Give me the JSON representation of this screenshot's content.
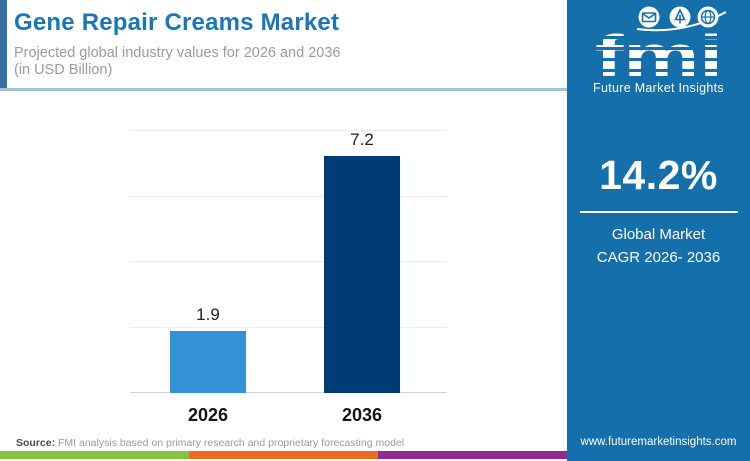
{
  "header": {
    "title": "Gene Repair Creams Market",
    "subtitle_line1": "Projected global industry values for 2026 and 2036",
    "subtitle_line2": "(in USD Billion)"
  },
  "chart_data": {
    "type": "bar",
    "title": "Gene Repair Creams Market",
    "subtitle": "Projected global industry values for 2026 and 2036 (in USD Billion)",
    "categories": [
      "2026",
      "2036"
    ],
    "values": [
      1.9,
      7.2
    ],
    "xlabel": "",
    "ylabel": "USD Billion",
    "ylim": [
      0,
      8
    ],
    "gridline_step": 2,
    "grid": true,
    "legend": false,
    "bar_colors": [
      "#3493d6",
      "#003a77"
    ]
  },
  "sidebar": {
    "background": "#156fab",
    "logo": {
      "brand": "fmi",
      "tagline": "Future Market Insights",
      "icons": [
        "mail-icon",
        "pen-icon",
        "globe-icon"
      ]
    },
    "cagr": {
      "value": "14.2%",
      "label_line1": "Global Market",
      "label_line2": "CAGR 2026- 2036"
    },
    "website": "www.futuremarketinsights.com"
  },
  "footer": {
    "source_label": "Source:",
    "source_text": " FMI analysis based on primary research and proprietary forecasting model",
    "stripe_colors": [
      "#85c441",
      "#ed6b21",
      "#8e2d8e"
    ]
  }
}
